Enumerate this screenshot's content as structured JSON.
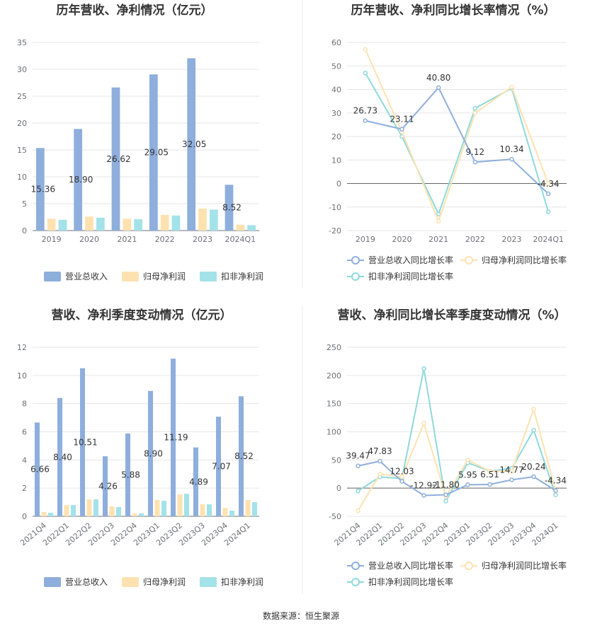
{
  "source_text": "数据来源：恒生聚源",
  "colors": {
    "revenue": "#8eaedc",
    "net_profit": "#fde2b0",
    "deducted": "#a3e2e8",
    "line_rev": "#8eaedc",
    "line_np": "#fde2b0",
    "line_ded": "#8fd9dc"
  },
  "chart_data": [
    {
      "type": "bar",
      "title": "历年营收、净利情况（亿元）",
      "categories": [
        "2019",
        "2020",
        "2021",
        "2022",
        "2023",
        "2024Q1"
      ],
      "yticks": [
        "0",
        "5",
        "10",
        "15",
        "20",
        "25",
        "30",
        "35"
      ],
      "ylim": [
        0,
        35
      ],
      "series": [
        {
          "name": "营业总收入",
          "values": [
            15.36,
            18.9,
            26.62,
            29.05,
            32.05,
            8.52
          ],
          "labels": [
            "15.36",
            "18.90",
            "26.62",
            "29.05",
            "32.05",
            "8.52"
          ]
        },
        {
          "name": "归母净利润",
          "values": [
            2.2,
            2.6,
            2.2,
            2.9,
            4.1,
            1.1
          ]
        },
        {
          "name": "扣非净利润",
          "values": [
            2.0,
            2.4,
            2.1,
            2.8,
            3.9,
            1.0
          ]
        }
      ],
      "legend": "bottom"
    },
    {
      "type": "line",
      "title": "历年营收、净利同比增长率情况（%）",
      "categories": [
        "2019",
        "2020",
        "2021",
        "2022",
        "2023",
        "2024Q1"
      ],
      "yticks": [
        "-20",
        "-10",
        "0",
        "10",
        "20",
        "30",
        "40",
        "50",
        "60"
      ],
      "ylim": [
        -20,
        60
      ],
      "series": [
        {
          "name": "营业总收入同比增长率",
          "values": [
            26.73,
            23.11,
            40.8,
            9.12,
            10.34,
            -4.34
          ],
          "labels": [
            "26.73",
            "23.11",
            "40.80",
            "9.12",
            "10.34",
            "-4.34"
          ]
        },
        {
          "name": "归母净利润同比增长率",
          "values": [
            57,
            22,
            -16,
            30,
            41,
            0
          ]
        },
        {
          "name": "扣非净利润同比增长率",
          "values": [
            47,
            20,
            -13,
            32,
            40.5,
            -12
          ]
        }
      ],
      "legend": "bottom"
    },
    {
      "type": "bar",
      "title": "营收、净利季度变动情况（亿元）",
      "categories": [
        "2021Q4",
        "2022Q1",
        "2022Q2",
        "2022Q3",
        "2022Q4",
        "2023Q1",
        "2023Q2",
        "2023Q3",
        "2023Q4",
        "2024Q1"
      ],
      "yticks": [
        "0",
        "2",
        "4",
        "6",
        "8",
        "10",
        "12"
      ],
      "ylim": [
        0,
        12
      ],
      "series": [
        {
          "name": "营业总收入",
          "values": [
            6.66,
            8.4,
            10.51,
            4.26,
            5.88,
            8.9,
            11.19,
            4.89,
            7.07,
            8.52
          ],
          "labels": [
            "6.66",
            "8.40",
            "10.51",
            "4.26",
            "5.88",
            "8.90",
            "11.19",
            "4.89",
            "7.07",
            "8.52"
          ]
        },
        {
          "name": "归母净利润",
          "values": [
            0.3,
            0.8,
            1.2,
            0.7,
            0.2,
            1.15,
            1.55,
            0.85,
            0.6,
            1.15
          ]
        },
        {
          "name": "扣非净利润",
          "values": [
            0.25,
            0.8,
            1.2,
            0.65,
            0.2,
            1.1,
            1.6,
            0.85,
            0.4,
            1.0
          ]
        }
      ],
      "legend": "bottom"
    },
    {
      "type": "line",
      "title": "营收、净利同比增长率季度变动情况（%）",
      "categories": [
        "2021Q4",
        "2022Q1",
        "2022Q2",
        "2022Q3",
        "2022Q4",
        "2023Q1",
        "2023Q2",
        "2023Q3",
        "2023Q4",
        "2024Q1"
      ],
      "yticks": [
        "-50",
        "0",
        "50",
        "100",
        "150",
        "200",
        "250"
      ],
      "ylim": [
        -50,
        250
      ],
      "series": [
        {
          "name": "营业总收入同比增长率",
          "values": [
            39.47,
            47.83,
            12.03,
            -12.92,
            -11.8,
            5.95,
            6.51,
            14.77,
            20.24,
            -4.34
          ],
          "labels": [
            "39.47",
            "47.83",
            "12.03",
            "-12.92",
            "-11.80",
            "5.95",
            "6.51",
            "14.77",
            "20.24",
            "-4.34"
          ]
        },
        {
          "name": "归母净利润同比增长率",
          "values": [
            -40,
            25,
            20,
            115,
            -15,
            50,
            30,
            30,
            140,
            -5
          ]
        },
        {
          "name": "扣非净利润同比增长率",
          "values": [
            -5,
            20,
            17,
            212,
            -23,
            45,
            30,
            35,
            103,
            -12
          ]
        }
      ],
      "legend": "bottom"
    }
  ]
}
